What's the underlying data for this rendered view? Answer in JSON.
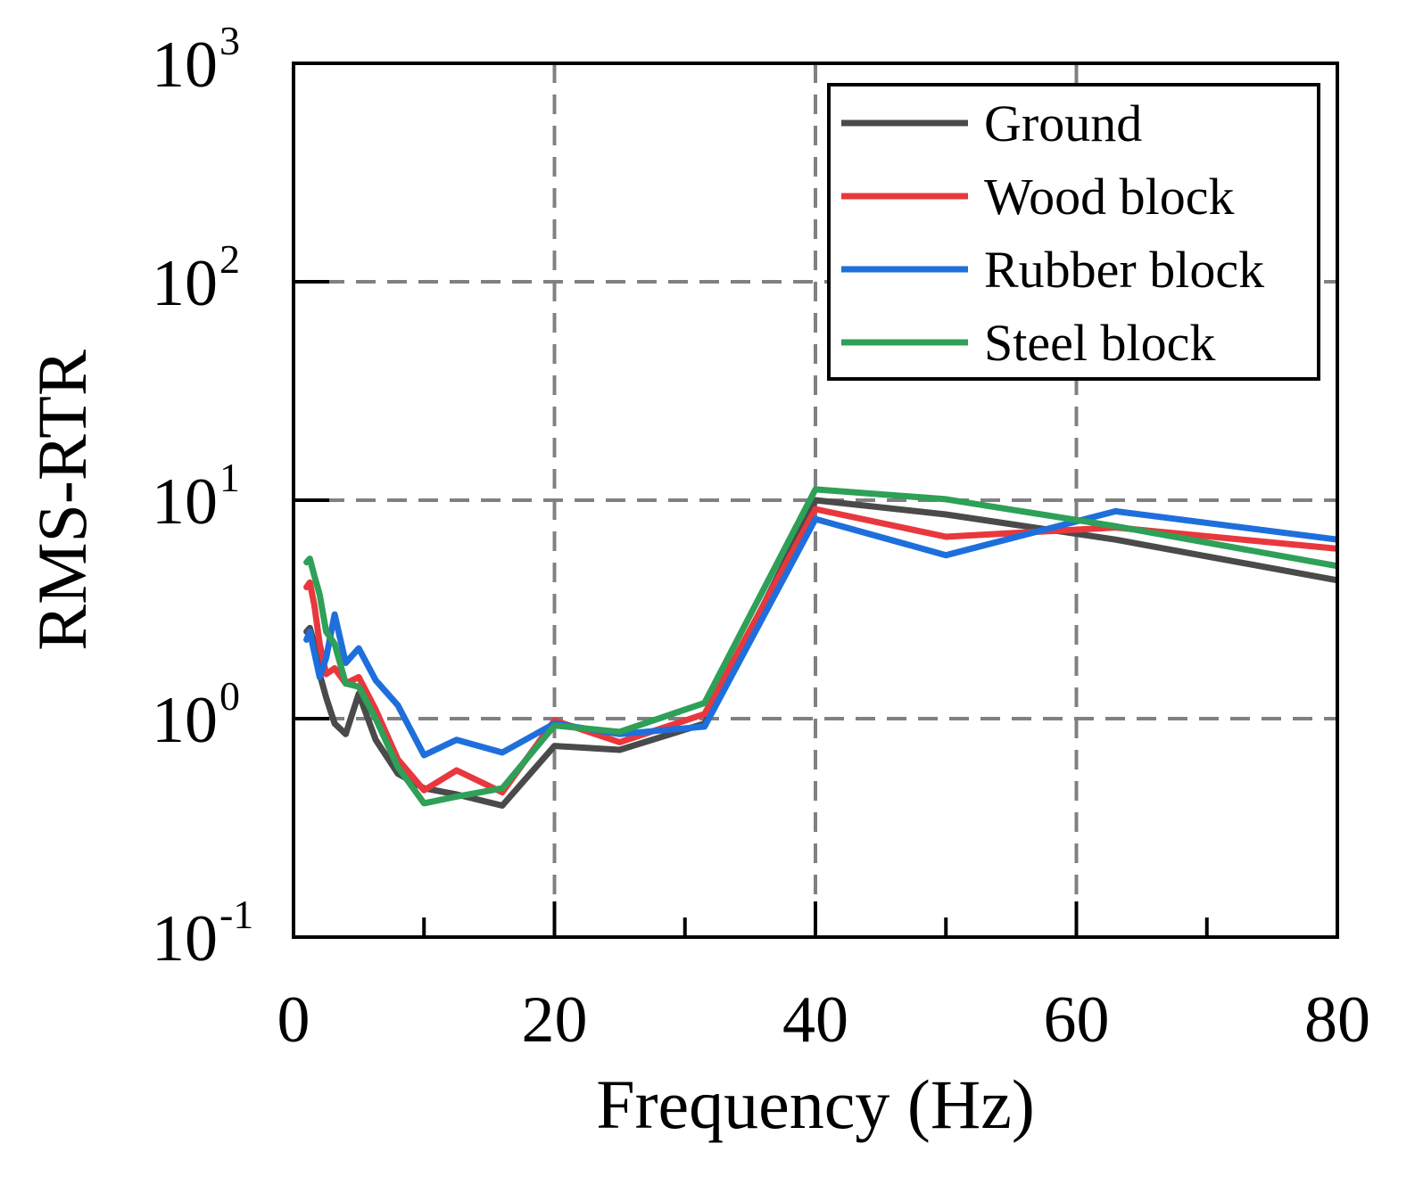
{
  "chart_data": {
    "type": "line",
    "title": "",
    "xlabel": "Frequency (Hz)",
    "ylabel": "RMS-RTR",
    "xlim": [
      0,
      80
    ],
    "ylim": [
      0.1,
      1000
    ],
    "yscale": "log",
    "grid": true,
    "legend_position": "top-right",
    "x_ticks": [
      "0",
      "20",
      "40",
      "60",
      "80"
    ],
    "x_tick_values": [
      0,
      20,
      40,
      60,
      80
    ],
    "y_ticks": [
      {
        "base": "10",
        "exp": "-1",
        "value": 0.1
      },
      {
        "base": "10",
        "exp": "0",
        "value": 1
      },
      {
        "base": "10",
        "exp": "1",
        "value": 10
      },
      {
        "base": "10",
        "exp": "2",
        "value": 100
      },
      {
        "base": "10",
        "exp": "3",
        "value": 1000
      }
    ],
    "series": [
      {
        "name": "Ground",
        "color": "#4a4a4a",
        "x": [
          1,
          1.25,
          1.6,
          2,
          2.5,
          3.15,
          4,
          5,
          6.3,
          8,
          10,
          12.5,
          16,
          20,
          25,
          31.5,
          40,
          50,
          63,
          80
        ],
        "y": [
          2.5,
          2.6,
          2.2,
          1.6,
          1.25,
          0.95,
          0.85,
          1.3,
          0.8,
          0.56,
          0.48,
          0.45,
          0.4,
          0.75,
          0.72,
          0.95,
          10,
          8.6,
          6.6,
          4.3
        ]
      },
      {
        "name": "Wood block",
        "color": "#e8383d",
        "x": [
          1,
          1.25,
          1.6,
          2,
          2.5,
          3.15,
          4,
          5,
          6.3,
          8,
          10,
          12.5,
          16,
          20,
          25,
          31.5,
          40,
          50,
          63,
          80
        ],
        "y": [
          4,
          4.2,
          3.3,
          2.2,
          1.6,
          1.7,
          1.45,
          1.55,
          1.1,
          0.65,
          0.47,
          0.58,
          0.46,
          0.98,
          0.78,
          1.05,
          9.1,
          6.8,
          7.5,
          6.0
        ]
      },
      {
        "name": "Rubber block",
        "color": "#1e6fdc",
        "x": [
          1,
          1.25,
          1.6,
          2,
          2.5,
          3.15,
          4,
          5,
          6.3,
          8,
          10,
          12.5,
          16,
          20,
          25,
          31.5,
          40,
          50,
          63,
          80
        ],
        "y": [
          2.3,
          2.5,
          2.0,
          1.55,
          1.9,
          3.0,
          1.8,
          2.1,
          1.5,
          1.15,
          0.68,
          0.8,
          0.7,
          0.95,
          0.85,
          0.92,
          8.2,
          5.6,
          8.9,
          6.6
        ]
      },
      {
        "name": "Steel block",
        "color": "#2ea058",
        "x": [
          1,
          1.25,
          1.6,
          2,
          2.5,
          3.15,
          4,
          5,
          6.3,
          8,
          10,
          12.5,
          16,
          20,
          25,
          31.5,
          40,
          50,
          63,
          80
        ],
        "y": [
          5.2,
          5.4,
          4.5,
          3.7,
          2.5,
          2.2,
          1.45,
          1.4,
          1.0,
          0.6,
          0.41,
          0.44,
          0.48,
          0.93,
          0.87,
          1.18,
          11.2,
          10.1,
          7.6,
          5.0
        ]
      }
    ]
  }
}
